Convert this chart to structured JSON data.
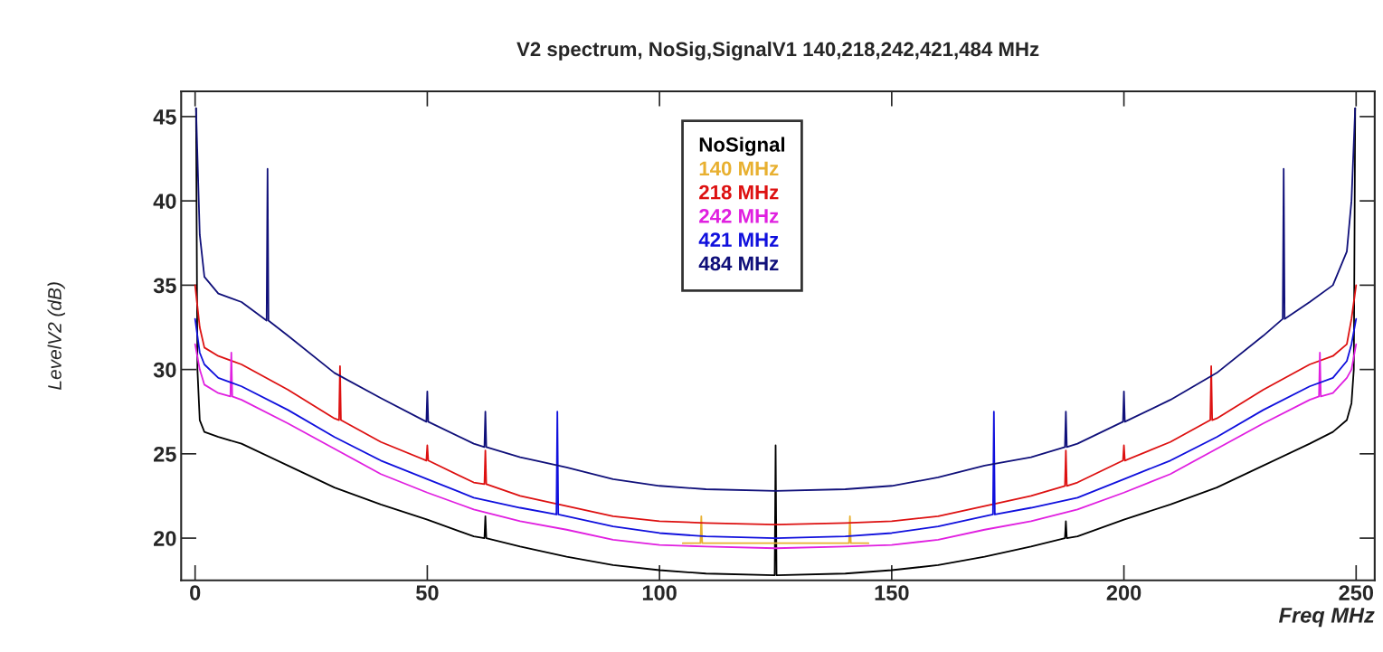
{
  "chart_data": {
    "type": "line",
    "title": "V2 spectrum, NoSig,SignalV1 140,218,242,421,484 MHz",
    "xlabel": "Freq MHz",
    "ylabel": "LevelV2 (dB)",
    "xlim": [
      -3,
      254
    ],
    "ylim": [
      17.5,
      46.5
    ],
    "xticks": [
      0,
      50,
      100,
      150,
      200,
      250
    ],
    "yticks": [
      20,
      25,
      30,
      35,
      40,
      45
    ],
    "grid": false,
    "legend": "top",
    "marker": "none",
    "line_style": "solid",
    "series": [
      {
        "name": "NoSignal",
        "color": "#000000",
        "x": [
          0.2,
          0.5,
          1,
          2,
          5,
          10,
          20,
          30,
          40,
          50,
          60,
          62.3,
          62.5,
          62.7,
          70,
          80,
          90,
          100,
          110,
          124.8,
          125,
          125.2,
          140,
          150,
          160,
          170,
          180,
          187.3,
          187.5,
          187.7,
          190,
          200,
          210,
          220,
          230,
          240,
          245,
          248,
          249,
          249.5,
          249.8
        ],
        "values": [
          45.5,
          30,
          27,
          26.3,
          26,
          25.6,
          24.3,
          23.0,
          22.0,
          21.1,
          20.1,
          20.0,
          21.3,
          20.0,
          19.5,
          18.9,
          18.4,
          18.1,
          17.9,
          17.8,
          25.5,
          17.8,
          17.9,
          18.1,
          18.4,
          18.9,
          19.5,
          20.0,
          21.0,
          20.0,
          20.1,
          21.1,
          22.0,
          23.0,
          24.3,
          25.6,
          26.3,
          27,
          28,
          30,
          45.5
        ]
      },
      {
        "name": "140 MHz",
        "color": "#e8b030",
        "x": [
          105,
          108.8,
          109,
          109.2,
          125,
          140.8,
          141,
          141.2,
          145
        ],
        "values": [
          19.7,
          19.7,
          21.3,
          19.7,
          19.7,
          19.7,
          21.3,
          19.7,
          19.7
        ]
      },
      {
        "name": "218 MHz",
        "color": "#dd1111",
        "x": [
          0,
          1,
          2,
          5,
          10,
          20,
          30,
          31.0,
          31.2,
          31.4,
          40,
          49.8,
          50,
          50.2,
          60,
          62.3,
          62.5,
          62.7,
          70,
          80,
          90,
          100,
          110,
          125,
          140,
          150,
          160,
          170,
          180,
          187.3,
          187.5,
          187.7,
          190,
          199.8,
          200,
          200.2,
          210,
          218.6,
          218.8,
          219.0,
          220,
          230,
          240,
          245,
          248,
          249,
          250
        ],
        "values": [
          35,
          32.5,
          31.3,
          30.8,
          30.3,
          28.8,
          27.1,
          27.0,
          30.2,
          27.0,
          25.7,
          24.6,
          25.5,
          24.6,
          23.3,
          23.2,
          25.2,
          23.2,
          22.5,
          21.9,
          21.3,
          21.0,
          20.9,
          20.8,
          20.9,
          21.0,
          21.3,
          21.9,
          22.5,
          23.1,
          25.2,
          23.1,
          23.3,
          24.6,
          25.5,
          24.6,
          25.7,
          27.0,
          30.2,
          27.0,
          27.1,
          28.8,
          30.3,
          30.8,
          31.5,
          33,
          35
        ]
      },
      {
        "name": "242 MHz",
        "color": "#e020e0",
        "x": [
          0,
          1,
          2,
          5,
          7.6,
          7.8,
          8.0,
          10,
          20,
          30,
          40,
          50,
          60,
          70,
          80,
          90,
          100,
          110,
          125,
          140,
          150,
          160,
          170,
          180,
          190,
          200,
          210,
          220,
          230,
          240,
          242.0,
          242.2,
          242.4,
          245,
          248,
          249,
          250
        ],
        "values": [
          31.5,
          30,
          29.1,
          28.6,
          28.4,
          31.0,
          28.4,
          28.2,
          26.8,
          25.3,
          23.8,
          22.7,
          21.7,
          21.0,
          20.5,
          19.9,
          19.6,
          19.5,
          19.4,
          19.5,
          19.6,
          19.9,
          20.5,
          21.0,
          21.7,
          22.7,
          23.8,
          25.3,
          26.8,
          28.2,
          28.4,
          31.0,
          28.4,
          28.6,
          29.5,
          30,
          31.5
        ]
      },
      {
        "name": "421 MHz",
        "color": "#1010dd",
        "x": [
          0,
          1,
          2,
          5,
          10,
          20,
          30,
          40,
          50,
          60,
          70,
          77.8,
          78,
          78.2,
          80,
          90,
          100,
          110,
          125,
          140,
          150,
          160,
          170,
          171.8,
          172,
          172.2,
          180,
          190,
          200,
          210,
          220,
          230,
          240,
          245,
          248,
          249,
          250
        ],
        "values": [
          33,
          31,
          30.3,
          29.5,
          29,
          27.6,
          26,
          24.6,
          23.5,
          22.4,
          21.8,
          21.4,
          27.5,
          21.4,
          21.3,
          20.7,
          20.3,
          20.1,
          20.0,
          20.1,
          20.3,
          20.7,
          21.3,
          21.4,
          27.5,
          21.4,
          21.8,
          22.4,
          23.5,
          24.6,
          26,
          27.6,
          29,
          29.5,
          30.5,
          31.5,
          33
        ]
      },
      {
        "name": "484 MHz",
        "color": "#10107a",
        "x": [
          0.2,
          1,
          2,
          5,
          10,
          15.4,
          15.6,
          15.8,
          20,
          30,
          40,
          49.8,
          50,
          50.2,
          60,
          62.3,
          62.5,
          62.7,
          70,
          80,
          90,
          100,
          110,
          125,
          140,
          150,
          160,
          170,
          180,
          187.3,
          187.5,
          187.7,
          190,
          199.8,
          200,
          200.2,
          210,
          220,
          230,
          234.2,
          234.4,
          234.6,
          240,
          245,
          248,
          249,
          249.8
        ],
        "values": [
          45.5,
          38,
          35.5,
          34.5,
          34,
          32.9,
          41.9,
          32.9,
          32,
          29.8,
          28.3,
          26.9,
          28.7,
          26.9,
          25.6,
          25.4,
          27.5,
          25.4,
          24.8,
          24.2,
          23.5,
          23.1,
          22.9,
          22.8,
          22.9,
          23.1,
          23.6,
          24.3,
          24.8,
          25.4,
          27.5,
          25.4,
          25.6,
          26.9,
          28.7,
          26.9,
          28.2,
          29.8,
          32,
          33.0,
          41.9,
          33.0,
          34,
          35,
          37,
          40,
          45.5
        ]
      }
    ]
  }
}
